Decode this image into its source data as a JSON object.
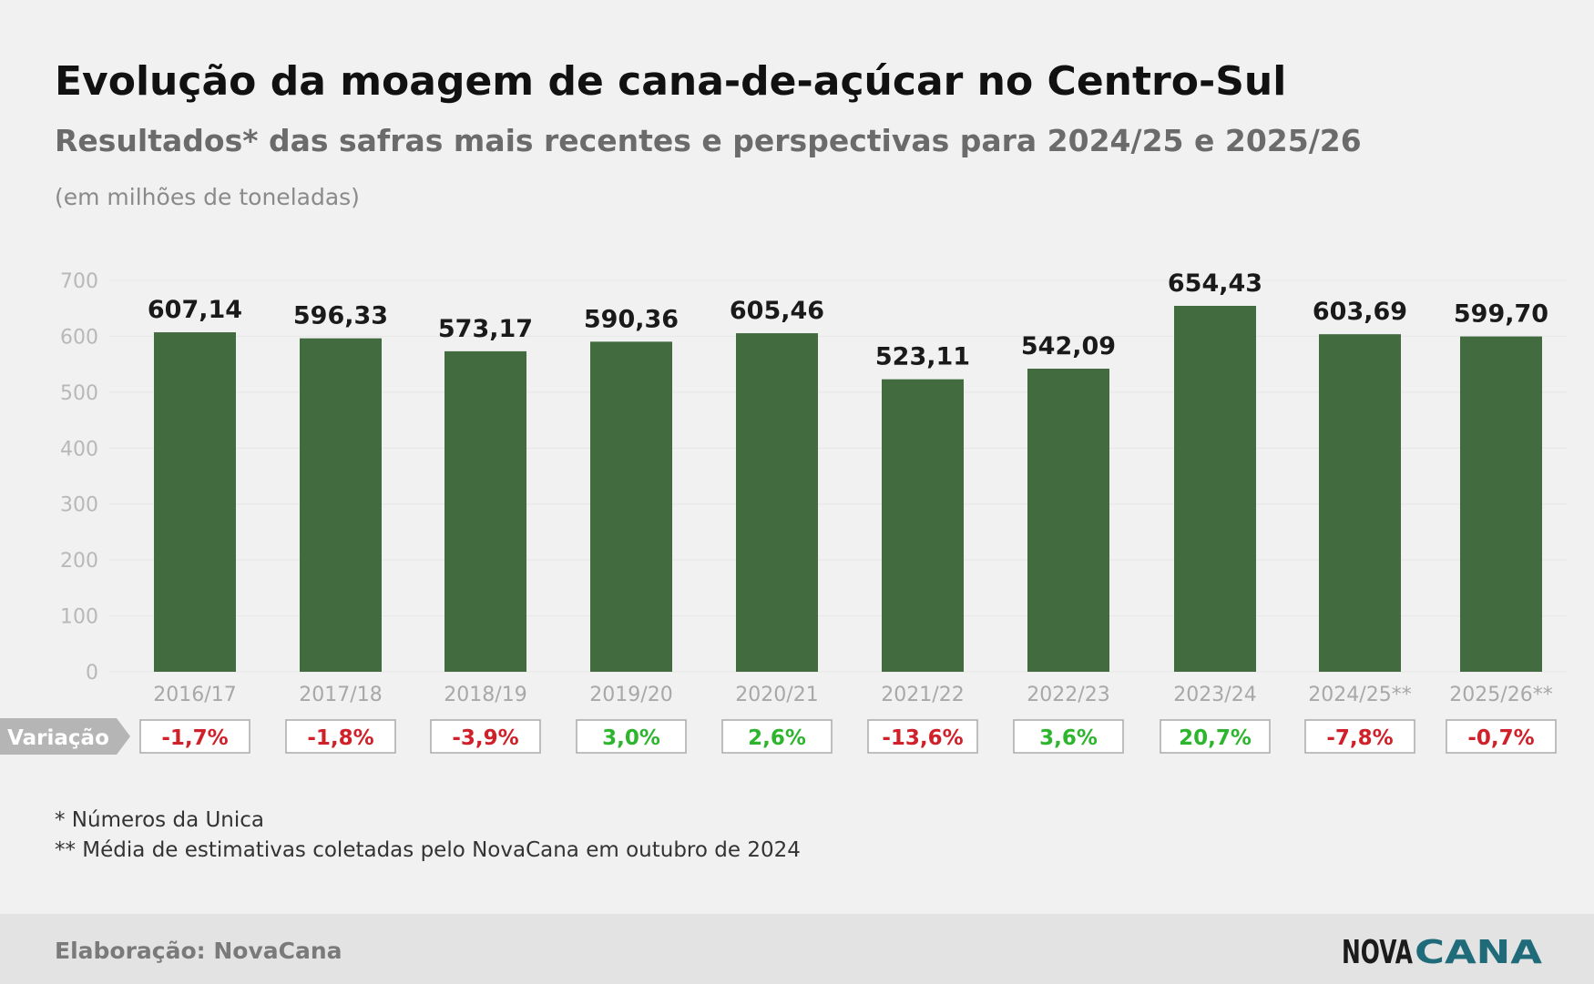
{
  "chart_data": {
    "type": "bar",
    "title": "Evolução da moagem de cana-de-açúcar no Centro-Sul",
    "subtitle": "Resultados* das safras mais recentes e perspectivas para 2024/25 e 2025/26",
    "unit_label": "(em milhões de toneladas)",
    "categories": [
      "2016/17",
      "2017/18",
      "2018/19",
      "2019/20",
      "2020/21",
      "2021/22",
      "2022/23",
      "2023/24",
      "2024/25**",
      "2025/26**"
    ],
    "values": [
      607.14,
      596.33,
      573.17,
      590.36,
      605.46,
      523.11,
      542.09,
      654.43,
      603.69,
      599.7
    ],
    "value_labels": [
      "607,14",
      "596,33",
      "573,17",
      "590,36",
      "605,46",
      "523,11",
      "542,09",
      "654,43",
      "603,69",
      "599,70"
    ],
    "color": "#426b40",
    "ylim": [
      0,
      700
    ],
    "yticks": [
      0,
      100,
      200,
      300,
      400,
      500,
      600,
      700
    ],
    "grid": true,
    "variation": {
      "label": "Variação",
      "values": [
        -1.7,
        -1.8,
        -3.9,
        3.0,
        2.6,
        -13.6,
        3.6,
        20.7,
        -7.8,
        -0.7
      ],
      "value_labels": [
        "-1,7%",
        "-1,8%",
        "-3,9%",
        "3,0%",
        "2,6%",
        "-13,6%",
        "3,6%",
        "20,7%",
        "-7,8%",
        "-0,7%"
      ],
      "positive_color": "#2db52d",
      "negative_color": "#d0202a"
    },
    "footnotes": [
      "* Números da Unica",
      "** Média de estimativas coletadas pelo NovaCana em outubro de 2024"
    ],
    "source": "Elaboração: NovaCana",
    "logo": [
      "NOVA",
      "CANA"
    ]
  }
}
